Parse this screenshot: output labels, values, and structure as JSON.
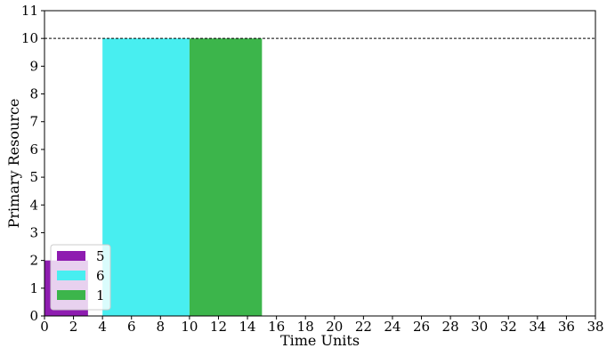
{
  "chart_data": {
    "type": "area",
    "title": "",
    "xlabel": "Time Units",
    "ylabel": "Primary Resource",
    "xlim": [
      0,
      38
    ],
    "ylim": [
      0,
      11
    ],
    "x_ticks": [
      "0",
      "2",
      "4",
      "6",
      "8",
      "10",
      "12",
      "14",
      "16",
      "18",
      "20",
      "22",
      "24",
      "26",
      "28",
      "30",
      "32",
      "34",
      "36",
      "38"
    ],
    "y_ticks": [
      "0",
      "1",
      "2",
      "3",
      "4",
      "5",
      "6",
      "7",
      "8",
      "9",
      "10",
      "11"
    ],
    "capacity_line": 10,
    "grid": false,
    "legend_position": "lower-left",
    "series": [
      {
        "name": "5",
        "color": "#8e1cb0",
        "x0": 0,
        "x1": 3,
        "height": 2
      },
      {
        "name": "6",
        "color": "#48eef0",
        "x0": 4,
        "x1": 10,
        "height": 10
      },
      {
        "name": "1",
        "color": "#3cb54b",
        "x0": 10,
        "x1": 15,
        "height": 10
      }
    ]
  }
}
